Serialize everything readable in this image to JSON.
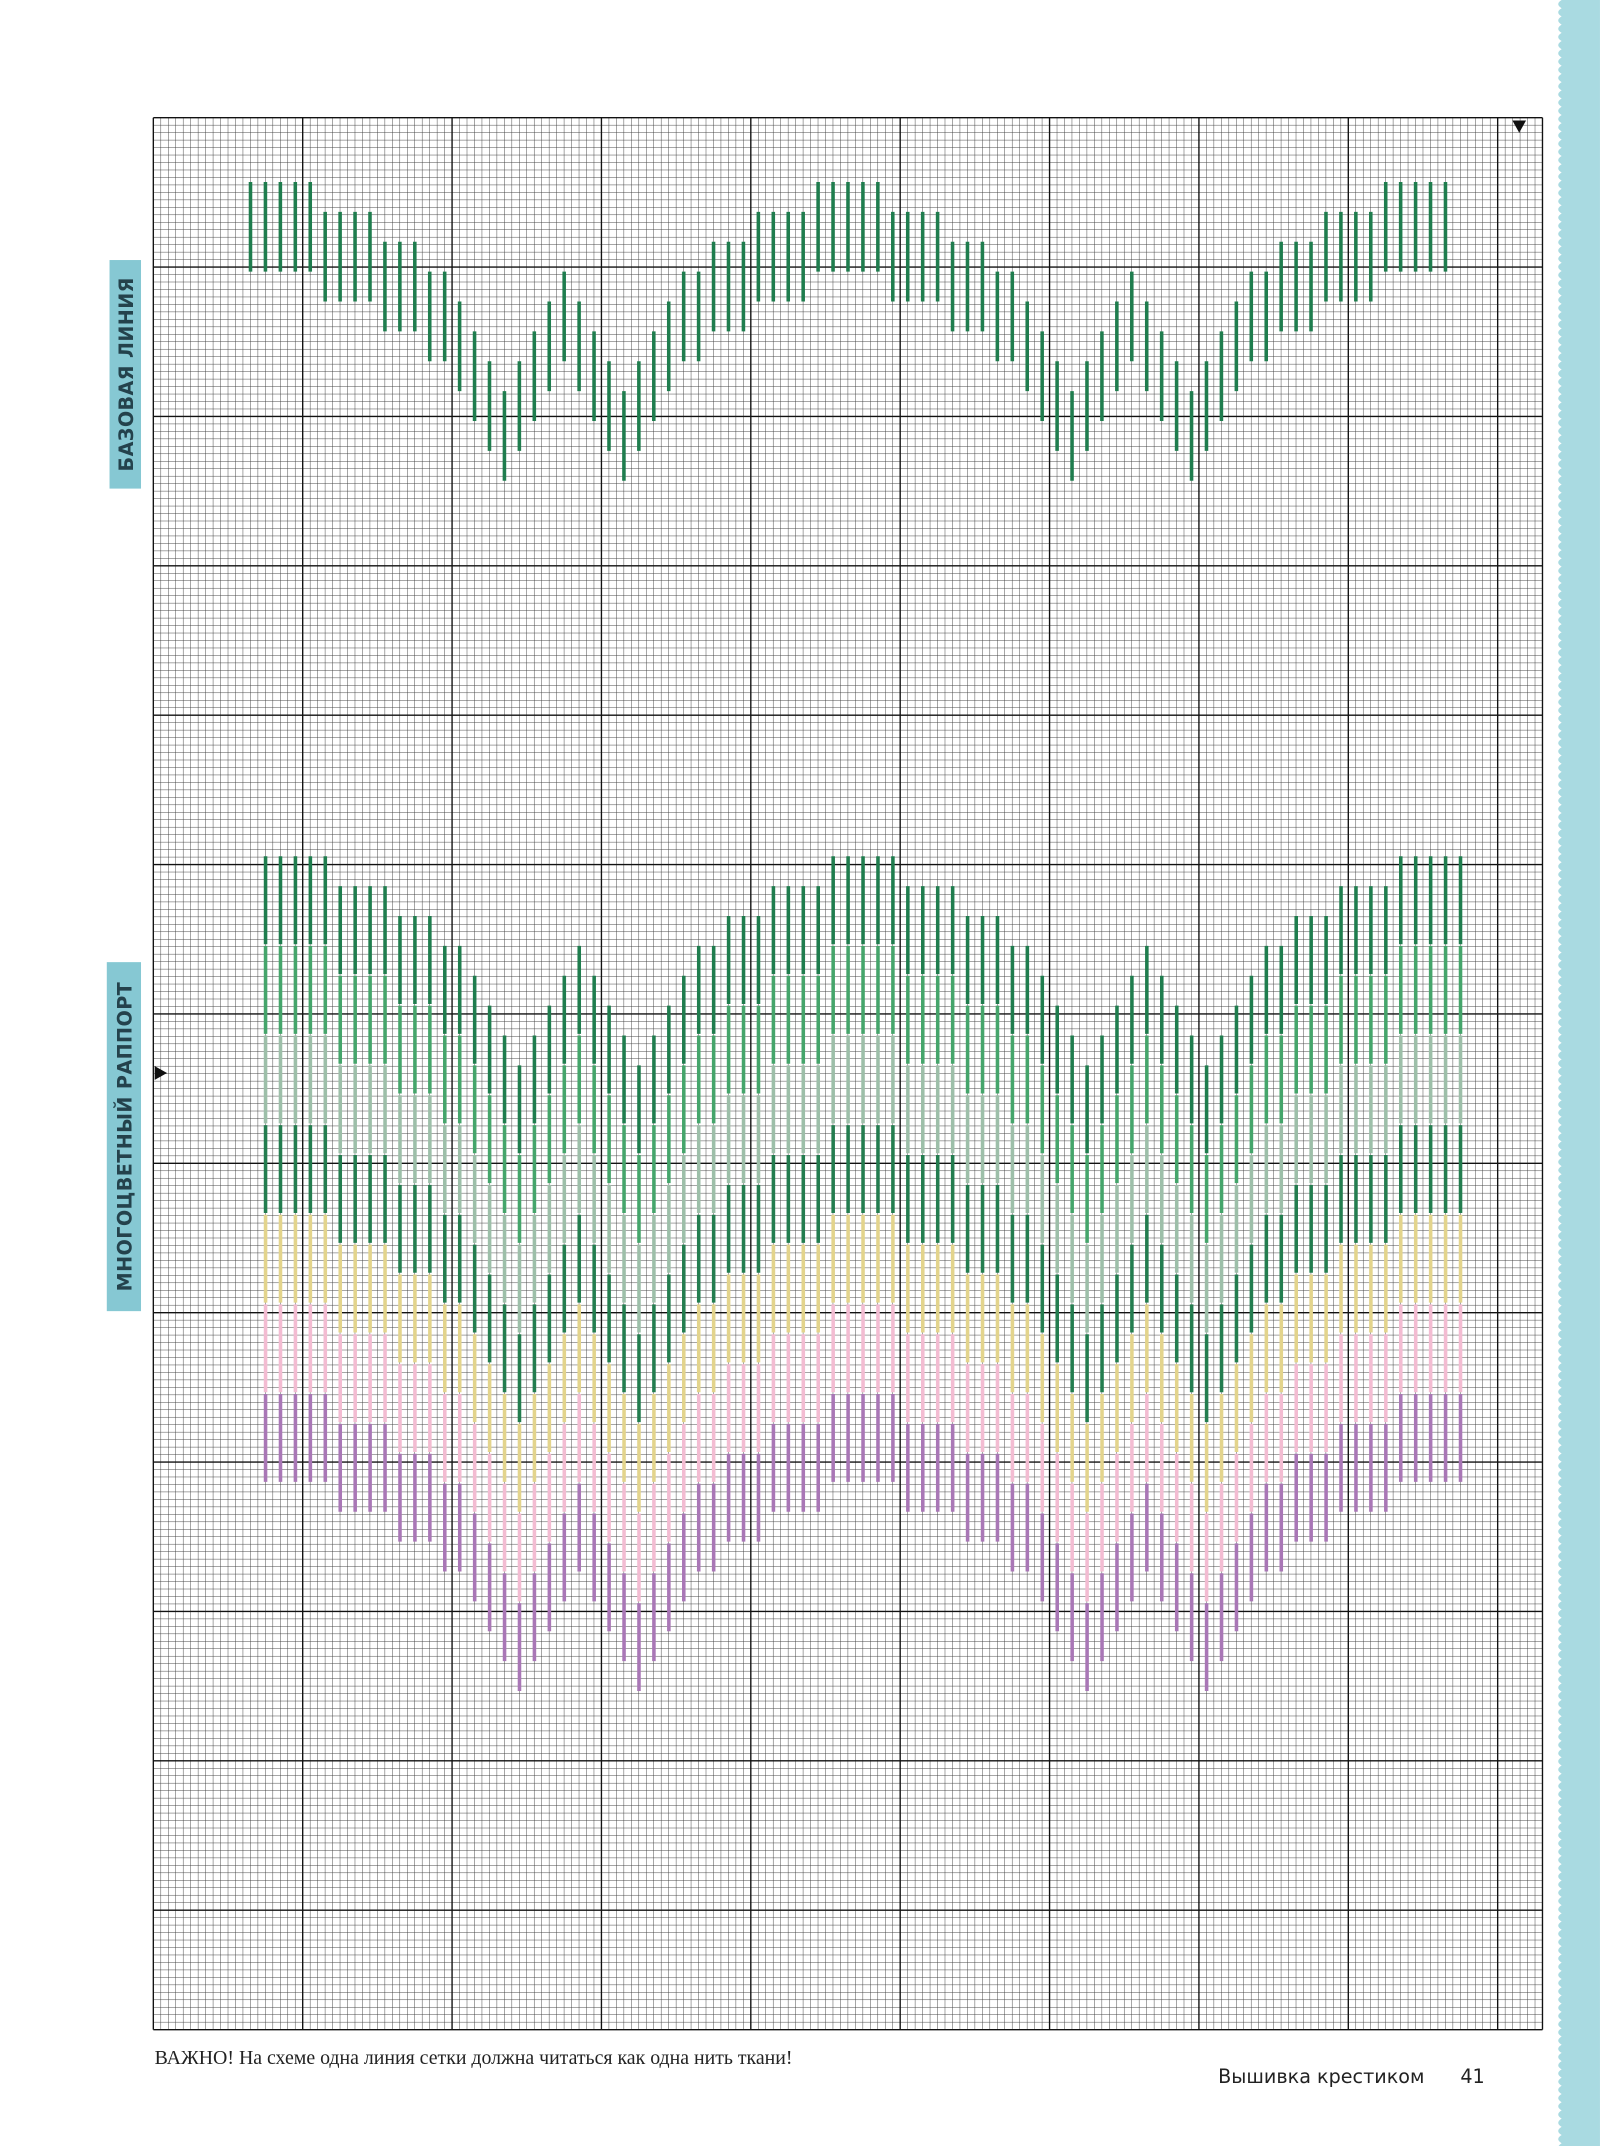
{
  "labels": {
    "base_line": "БАЗОВАЯ ЛИНИЯ",
    "multicolor": "МНОГОЦВЕТНЫЙ РАППОРТ"
  },
  "note": "ВАЖНО! На схеме одна линия сетки должна читаться как одна нить ткани!",
  "footer": {
    "title": "Вышивка крестиком",
    "page": "41"
  }
}
